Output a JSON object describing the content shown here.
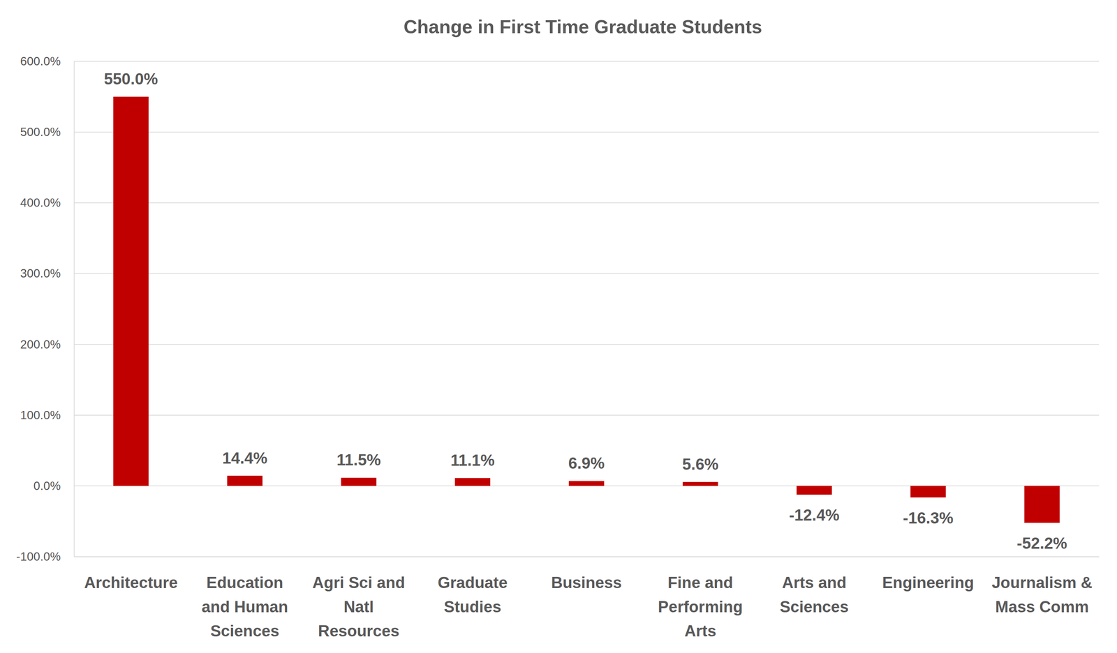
{
  "chart_data": {
    "type": "bar",
    "title": "Change in First Time Graduate Students",
    "categories": [
      "Architecture",
      "Education and Human Sciences",
      "Agri Sci and Natl Resources",
      "Graduate Studies",
      "Business",
      "Fine and Performing Arts",
      "Arts and Sciences",
      "Engineering",
      "Journalism & Mass Comm"
    ],
    "values": [
      550,
      14.4,
      11.5,
      11.1,
      6.9,
      5.6,
      -12.4,
      -16.3,
      -52.2
    ],
    "value_labels": [
      "550.0%",
      "14.4%",
      "11.5%",
      "11.1%",
      "6.9%",
      "5.6%",
      "-12.4%",
      "-16.3%",
      "-52.2%"
    ],
    "color": "#c00000",
    "ylim": [
      -100,
      600
    ],
    "yticks": [
      {
        "value": -100,
        "label": "-100.0%"
      },
      {
        "value": 0,
        "label": "0.0%"
      },
      {
        "value": 100,
        "label": "100.0%"
      },
      {
        "value": 200,
        "label": "200.0%"
      },
      {
        "value": 300,
        "label": "300.0%"
      },
      {
        "value": 400,
        "label": "400.0%"
      },
      {
        "value": 500,
        "label": "500.0%"
      },
      {
        "value": 600,
        "label": "600.0%"
      }
    ],
    "grid": true,
    "data_labels": true
  }
}
